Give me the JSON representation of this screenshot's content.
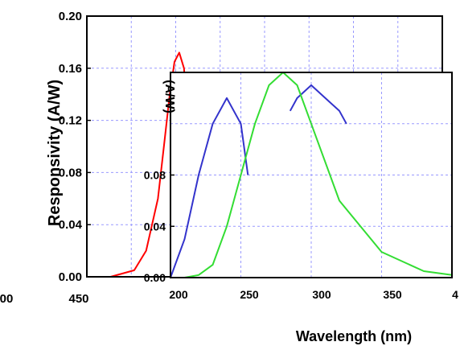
{
  "chart_data": [
    {
      "type": "line",
      "role": "main",
      "ylabel": "Responsivity (A/W)",
      "xlabel": "",
      "ylim": [
        0.0,
        0.2
      ],
      "xlim": [
        150,
        450
      ],
      "x_tick_labels": [
        "00",
        "450"
      ],
      "y_tick_labels": [
        "0.00",
        "0.04",
        "0.08",
        "0.12",
        "0.16",
        "0.20"
      ],
      "y_ticks": [
        0.0,
        0.04,
        0.08,
        0.12,
        0.16,
        0.2
      ],
      "grid": true,
      "series": [
        {
          "color": "#ff0000",
          "x": [
            150,
            170,
            190,
            200,
            210,
            215,
            220,
            224,
            228,
            232,
            240,
            260,
            300,
            350,
            400,
            450
          ],
          "y": [
            0.0,
            0.0,
            0.005,
            0.02,
            0.06,
            0.1,
            0.14,
            0.165,
            0.172,
            0.16,
            0.05,
            0.01,
            0.003,
            0.002,
            0.001,
            0.001
          ]
        }
      ]
    },
    {
      "type": "line",
      "role": "inset",
      "xlabel": "Wavelength (nm)",
      "ylabel": "(A/W)",
      "xlim": [
        200,
        400
      ],
      "ylim": [
        0.0,
        0.16
      ],
      "x_tick_labels": [
        "200",
        "250",
        "300",
        "350",
        "4"
      ],
      "y_tick_labels": [
        "0.00",
        "0.04",
        "0.08"
      ],
      "grid": true,
      "series": [
        {
          "color": "#3333cc",
          "x": [
            200,
            210,
            220,
            230,
            240,
            250,
            255
          ],
          "y": [
            0.0,
            0.03,
            0.08,
            0.12,
            0.14,
            0.12,
            0.08
          ]
        },
        {
          "color": "#3333cc",
          "x": [
            285,
            290,
            300,
            310,
            320,
            325
          ],
          "y": [
            0.13,
            0.14,
            0.15,
            0.14,
            0.13,
            0.12
          ]
        },
        {
          "color": "#33dd33",
          "x": [
            200,
            210,
            220,
            230,
            240,
            250,
            260,
            270,
            280,
            290,
            300,
            320,
            350,
            380,
            400
          ],
          "y": [
            0.0,
            0.0,
            0.002,
            0.01,
            0.04,
            0.08,
            0.12,
            0.15,
            0.16,
            0.15,
            0.12,
            0.06,
            0.02,
            0.005,
            0.002
          ]
        }
      ]
    }
  ],
  "colors": {
    "grid": "#9999ff",
    "axis": "#000000",
    "background": "#ffffff"
  }
}
